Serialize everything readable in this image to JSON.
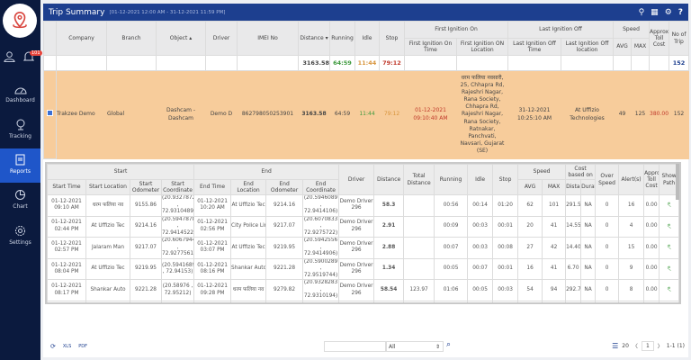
{
  "sidebar": {
    "badge": "101",
    "items": [
      {
        "label": "Dashboard"
      },
      {
        "label": "Tracking"
      },
      {
        "label": "Reports",
        "active": true
      },
      {
        "label": "Chart"
      },
      {
        "label": "Settings"
      }
    ]
  },
  "header": {
    "title": "Trip Summary",
    "range": "[01-12-2021 12:00 AM - 31-12-2021 11:59 PM]",
    "icons": [
      "filter-icon",
      "calendar-icon",
      "gear-icon",
      "help-icon"
    ]
  },
  "main_table": {
    "group_headers": {
      "first_ignition": "First Ignition On",
      "last_ignition": "Last Ignition Off",
      "speed": "Speed"
    },
    "headers": [
      "Company",
      "Branch",
      "Object ▴",
      "Driver",
      "IMEI No",
      "Distance ▾",
      "Running",
      "Idle",
      "Stop",
      "First Ignition On Time",
      "First Ignition ON Location",
      "Last Ignition Off Time",
      "Last Ignition Off location",
      "AVG",
      "MAX",
      "Approx Toll Cost",
      "No of Trip"
    ],
    "totals": {
      "distance": "3163.58",
      "running": "64:59",
      "idle": "11:44",
      "stop": "79:12",
      "trips": "152"
    },
    "row": [
      "Trakzee Demo",
      "Global",
      "Dashcam - Dashcam",
      "Demo D",
      "862798050253901",
      "3163.58",
      "64:59",
      "11:44",
      "79:12",
      "01-12-2021 09:10:40 AM",
      "धरम फलिया नवसारी, 25, Chhapra Rd, Rajeshri Nagar, Rana Society, Chhapra Rd, Rajeshri Nagar, Rana Society, Ratnakar, Panchvati, Navsari, Gujarat (SE)",
      "31-12-2021 10:25:10 AM",
      "At Uffizio Technologies",
      "49",
      "125",
      "380.00",
      "152"
    ]
  },
  "sub_table": {
    "group_headers": {
      "start": "Start",
      "end": "End",
      "speed": "Speed",
      "cost": "Cost based on"
    },
    "headers": [
      "Start Time",
      "Start Location",
      "Start Odometer",
      "Start Coordinate",
      "End Time",
      "End Location",
      "End Odometer",
      "End Coordinate",
      "Driver",
      "Distance",
      "Total Distance",
      "Running",
      "Idle",
      "Stop",
      "AVG",
      "MAX",
      "Distance",
      "Duration",
      "Over Speed",
      "Alert(s)",
      "Approx Toll Cost",
      "Show Path"
    ],
    "rows": [
      [
        "01-12-2021 09:10 AM",
        "धरम फलिया नव",
        "9155.86",
        "(20.9327872 , 72.9310489)",
        "01-12-2021 10:20 AM",
        "At Uffizio Tec",
        "9214.16",
        "(20.5946089 , 72.9414106)",
        "Demo Driver 296",
        "58.3",
        "",
        "00:56",
        "00:14",
        "01:20",
        "62",
        "101",
        "291.5",
        "NA",
        "0",
        "16",
        "0.00"
      ],
      [
        "01-12-2021 02:44 PM",
        "At Uffizio Tec",
        "9214.16",
        "(20.5947878 , 72.9414522)",
        "01-12-2021 02:56 PM",
        "City Police Lin",
        "9217.07",
        "(20.6070833 , 72.9275722)",
        "Demo Driver 296",
        "2.91",
        "",
        "00:09",
        "00:03",
        "00:01",
        "20",
        "41",
        "14.55",
        "NA",
        "0",
        "4",
        "0.00"
      ],
      [
        "01-12-2021 02:57 PM",
        "Jalaram Man",
        "9217.07",
        "(20.6067944 , 72.9277561)",
        "01-12-2021 03:07 PM",
        "At Uffizio Tec",
        "9219.95",
        "(20.5942556 , 72.9414906)",
        "Demo Driver 296",
        "2.88",
        "",
        "00:07",
        "00:03",
        "00:08",
        "27",
        "42",
        "14.40",
        "NA",
        "0",
        "15",
        "0.00"
      ],
      [
        "01-12-2021 08:04 PM",
        "At Uffizio Tec",
        "9219.95",
        "(20.5941689 , 72.94153)",
        "01-12-2021 08:16 PM",
        "Shankar Auto",
        "9221.28",
        "(20.5900289 , 72.9519744)",
        "Demo Driver 296",
        "1.34",
        "",
        "00:05",
        "00:07",
        "00:01",
        "16",
        "41",
        "6.70",
        "NA",
        "0",
        "9",
        "0.00"
      ],
      [
        "01-12-2021 08:17 PM",
        "Shankar Auto",
        "9221.28",
        "(20.58976 , 72.95212)",
        "01-12-2021 09:28 PM",
        "धरम फलिया नव",
        "9279.82",
        "(20.9328283 , 72.9310194)",
        "Demo Driver 296",
        "58.54",
        "123.97",
        "01:06",
        "00:05",
        "00:03",
        "54",
        "94",
        "292.7",
        "NA",
        "0",
        "8",
        "0.00"
      ],
      [
        "02-12-2021",
        "धरम फलिया नव",
        "9279.8",
        "(20.9328528 ,",
        "02-12-2021",
        "Motia Bin",
        "9325.14",
        "(20.6829183 ,",
        "Demo Driver",
        "45.32",
        "",
        "00:45",
        "00:04",
        "00:07",
        "61",
        "108",
        "226.6",
        "NA",
        "0",
        "4",
        "0.00"
      ]
    ]
  },
  "footer": {
    "export_xls": "XLS",
    "export_pdf": "PDF",
    "filter_select": "All",
    "page_size": "20",
    "page": "1",
    "range": "1-1 (1)"
  },
  "colors": {
    "sidebar": "#0b1a3e",
    "header": "#1d3f8f",
    "active": "#1f56c9",
    "row_highlight": "#f7cc9b",
    "running": "#3e9a3e",
    "idle": "#d8953c",
    "stop": "#c0392b"
  }
}
